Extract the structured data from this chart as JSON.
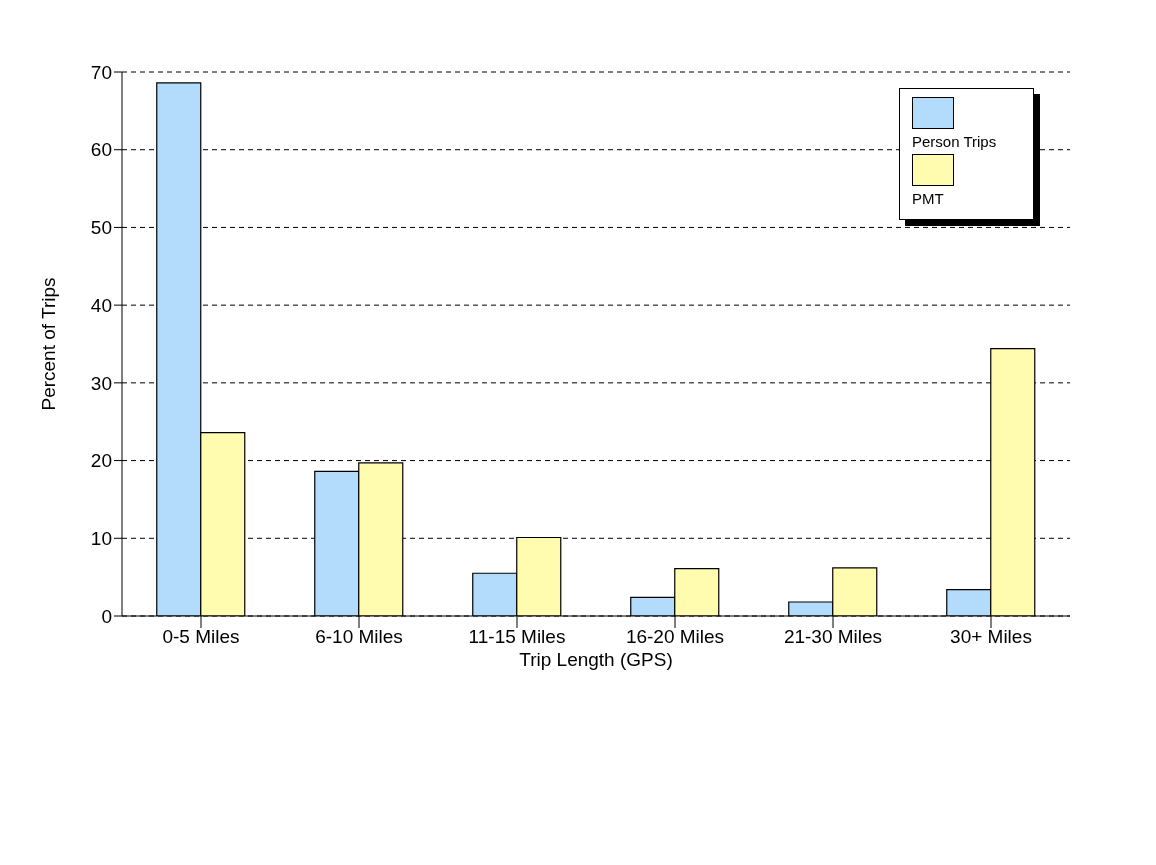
{
  "chart_data": {
    "type": "bar",
    "xlabel": "Trip Length (GPS)",
    "ylabel": "Percent of Trips",
    "categories": [
      "0-5 Miles",
      "6-10 Miles",
      "11-15 Miles",
      "16-20 Miles",
      "21-30 Miles",
      "30+ Miles"
    ],
    "series": [
      {
        "name": "Person Trips",
        "color": "#b3dcfc",
        "values": [
          68.6,
          18.6,
          5.5,
          2.4,
          1.8,
          3.4
        ]
      },
      {
        "name": "PMT",
        "color": "#fffcb0",
        "values": [
          23.6,
          19.7,
          10.1,
          6.1,
          6.2,
          34.4
        ]
      }
    ],
    "ylim": [
      0,
      70
    ],
    "yticks": [
      0,
      10,
      20,
      30,
      40,
      50,
      60,
      70
    ],
    "grid": "y",
    "legend": "top right"
  }
}
